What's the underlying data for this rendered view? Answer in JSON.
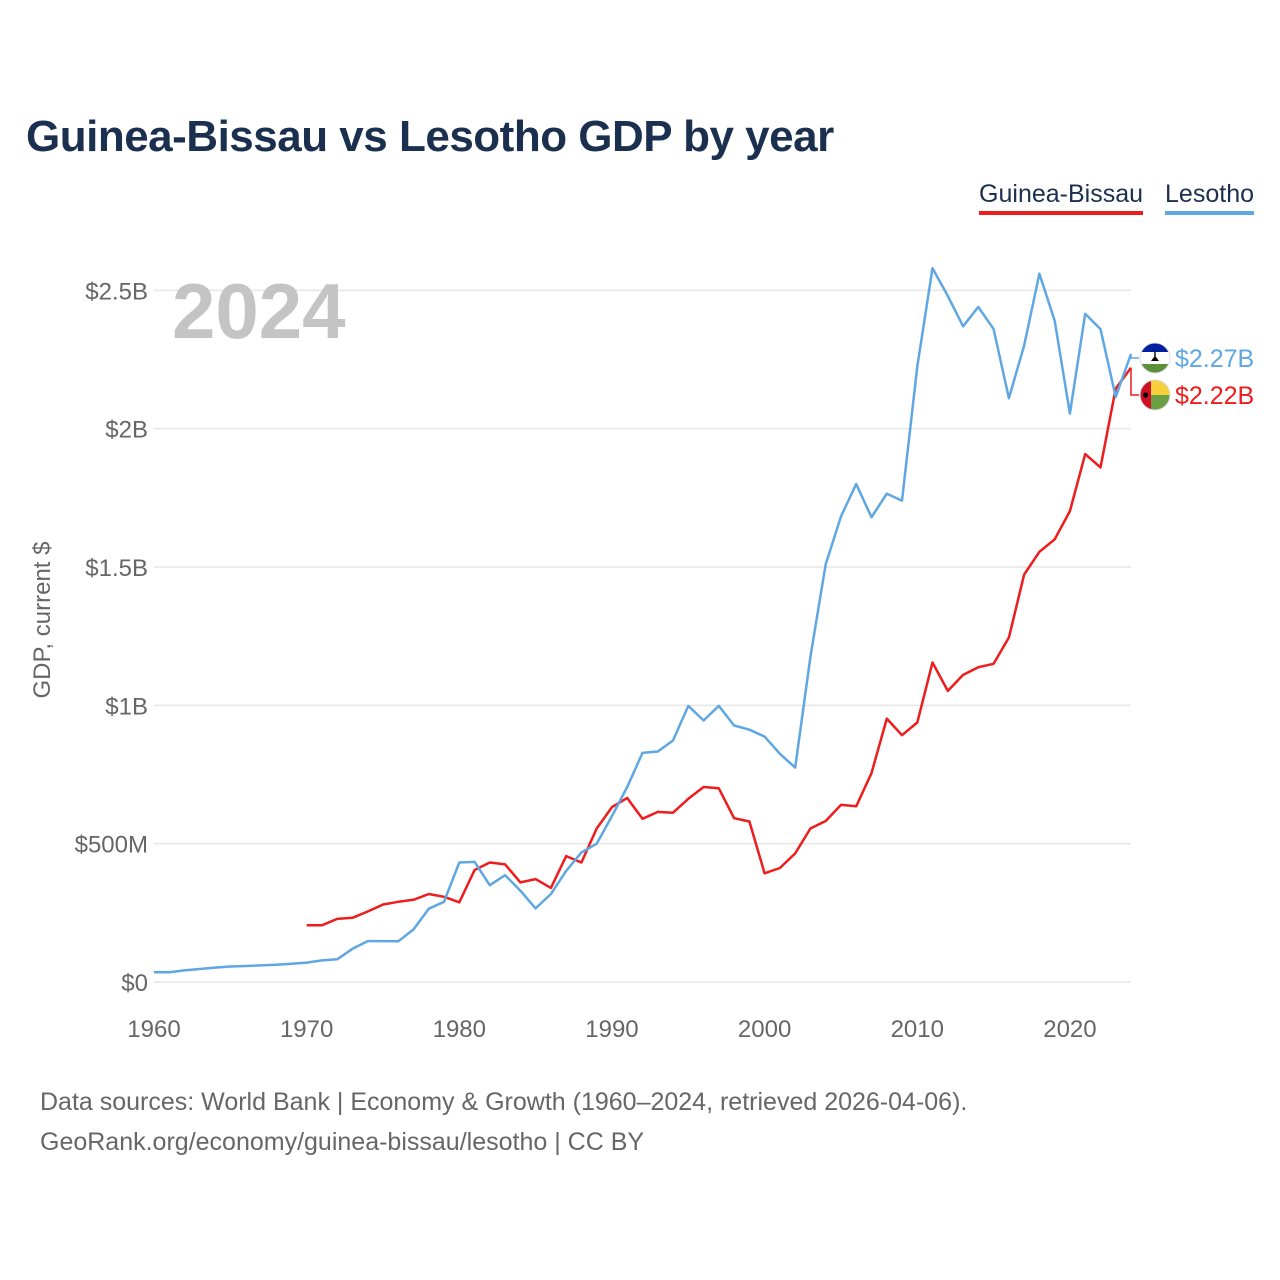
{
  "chart_data": {
    "type": "line",
    "title": "Guinea-Bissau vs Lesotho GDP by year",
    "ylabel": "GDP, current $",
    "xlabel": "",
    "xlim": [
      1960,
      2024
    ],
    "ylim": [
      0,
      2700000000
    ],
    "x_ticks": [
      1960,
      1970,
      1980,
      1990,
      2000,
      2010,
      2020
    ],
    "x_tick_labels": [
      "1960",
      "1970",
      "1980",
      "1990",
      "2000",
      "2010",
      "2020"
    ],
    "y_ticks": [
      0,
      500000000,
      1000000000,
      1500000000,
      2000000000,
      2500000000
    ],
    "y_tick_labels": [
      "$0",
      "$500M",
      "$1B",
      "$1.5B",
      "$2B",
      "$2.5B"
    ],
    "grid": true,
    "legend_position": "top-right",
    "year_label": "2024",
    "series": [
      {
        "name": "Guinea-Bissau",
        "color": "#ee1c1c",
        "end_label": "$2.22B",
        "flag": "guinea-bissau-flag-icon",
        "x": [
          1970,
          1971,
          1972,
          1973,
          1974,
          1975,
          1976,
          1977,
          1978,
          1979,
          1980,
          1981,
          1982,
          1983,
          1984,
          1985,
          1986,
          1987,
          1988,
          1989,
          1990,
          1991,
          1992,
          1993,
          1994,
          1995,
          1996,
          1997,
          1998,
          1999,
          2000,
          2001,
          2002,
          2003,
          2004,
          2005,
          2006,
          2007,
          2008,
          2009,
          2010,
          2011,
          2012,
          2013,
          2014,
          2015,
          2016,
          2017,
          2018,
          2019,
          2020,
          2021,
          2022,
          2023,
          2024
        ],
        "values": [
          205000000,
          205000000,
          228000000,
          232000000,
          255000000,
          280000000,
          290000000,
          297000000,
          318000000,
          308000000,
          288000000,
          405000000,
          432000000,
          425000000,
          360000000,
          372000000,
          340000000,
          455000000,
          432000000,
          555000000,
          632000000,
          665000000,
          590000000,
          615000000,
          612000000,
          662000000,
          705000000,
          700000000,
          592000000,
          580000000,
          393000000,
          412000000,
          465000000,
          555000000,
          582000000,
          640000000,
          635000000,
          755000000,
          952000000,
          892000000,
          938000000,
          1155000000,
          1052000000,
          1110000000,
          1138000000,
          1150000000,
          1245000000,
          1472000000,
          1555000000,
          1600000000,
          1702000000,
          1908000000,
          1860000000,
          2145000000,
          2220000000
        ]
      },
      {
        "name": "Lesotho",
        "color": "#5fa7e3",
        "end_label": "$2.27B",
        "flag": "lesotho-flag-icon",
        "x": [
          1960,
          1961,
          1962,
          1963,
          1964,
          1965,
          1966,
          1967,
          1968,
          1969,
          1970,
          1971,
          1972,
          1973,
          1974,
          1975,
          1976,
          1977,
          1978,
          1979,
          1980,
          1981,
          1982,
          1983,
          1984,
          1985,
          1986,
          1987,
          1988,
          1989,
          1990,
          1991,
          1992,
          1993,
          1994,
          1995,
          1996,
          1997,
          1998,
          1999,
          2000,
          2001,
          2002,
          2003,
          2004,
          2005,
          2006,
          2007,
          2008,
          2009,
          2010,
          2011,
          2012,
          2013,
          2014,
          2015,
          2016,
          2017,
          2018,
          2019,
          2020,
          2021,
          2022,
          2023,
          2024
        ],
        "values": [
          35000000,
          35000000,
          42000000,
          47000000,
          52000000,
          56000000,
          58000000,
          60000000,
          62000000,
          66000000,
          70000000,
          78000000,
          82000000,
          120000000,
          148000000,
          148000000,
          147000000,
          190000000,
          265000000,
          290000000,
          432000000,
          434000000,
          350000000,
          386000000,
          330000000,
          266000000,
          318000000,
          402000000,
          468000000,
          500000000,
          600000000,
          705000000,
          828000000,
          833000000,
          873000000,
          998000000,
          945000000,
          998000000,
          927000000,
          912000000,
          887000000,
          825000000,
          775000000,
          1175000000,
          1510000000,
          1683000000,
          1800000000,
          1680000000,
          1765000000,
          1740000000,
          2225000000,
          2580000000,
          2480000000,
          2370000000,
          2440000000,
          2360000000,
          2110000000,
          2300000000,
          2560000000,
          2390000000,
          2055000000,
          2415000000,
          2360000000,
          2115000000,
          2270000000
        ]
      }
    ]
  },
  "source": {
    "line1": "Data sources: World Bank | Economy & Growth (1960–2024, retrieved 2026-04-06).",
    "line2": "GeoRank.org/economy/guinea-bissau/lesotho | CC BY"
  }
}
